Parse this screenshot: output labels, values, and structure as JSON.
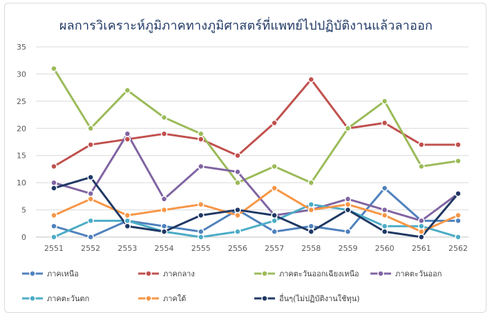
{
  "chart_data": {
    "type": "line",
    "title": "ผลการวิเคราะห์ภูมิภาคทางภูมิศาสตร์ที่แพทย์ไปปฏิบัติงานแล้วลาออก",
    "xlabel": "",
    "ylabel": "",
    "ylim": [
      0,
      35
    ],
    "yticks": [
      0,
      5,
      10,
      15,
      20,
      25,
      30,
      35
    ],
    "grid": true,
    "legend_position": "bottom",
    "categories": [
      "2551",
      "2552",
      "2553",
      "2554",
      "2555",
      "2556",
      "2557",
      "2558",
      "2559",
      "2560",
      "2561",
      "2562"
    ],
    "series": [
      {
        "name": "ภาคเหนือ",
        "color": "#4f81bd",
        "values": [
          2,
          0,
          3,
          2,
          1,
          5,
          1,
          2,
          1,
          9,
          3,
          3
        ]
      },
      {
        "name": "ภาคกลาง",
        "color": "#c0504d",
        "values": [
          13,
          17,
          18,
          19,
          18,
          15,
          21,
          29,
          20,
          21,
          17,
          17
        ]
      },
      {
        "name": "ภาคตะวันออกเฉียงเหนือ",
        "color": "#9bbb59",
        "values": [
          31,
          20,
          27,
          22,
          19,
          10,
          13,
          10,
          20,
          25,
          13,
          14
        ]
      },
      {
        "name": "ภาคตะวันออก",
        "color": "#8064a2",
        "values": [
          10,
          8,
          19,
          7,
          13,
          12,
          4,
          5,
          7,
          5,
          3,
          8
        ]
      },
      {
        "name": "ภาคตะวันตก",
        "color": "#4bacc6",
        "values": [
          0,
          3,
          3,
          1,
          0,
          1,
          3,
          6,
          5,
          2,
          2,
          0
        ]
      },
      {
        "name": "ภาคใต้",
        "color": "#f79646",
        "values": [
          4,
          7,
          4,
          5,
          6,
          4,
          9,
          5,
          6,
          4,
          1,
          4
        ]
      },
      {
        "name": "อื่นๆ(ไม่ปฏิบัติงานใช้ทุน)",
        "color": "#1f3864",
        "values": [
          9,
          11,
          2,
          1,
          4,
          5,
          4,
          1,
          5,
          1,
          0,
          8
        ]
      }
    ]
  }
}
